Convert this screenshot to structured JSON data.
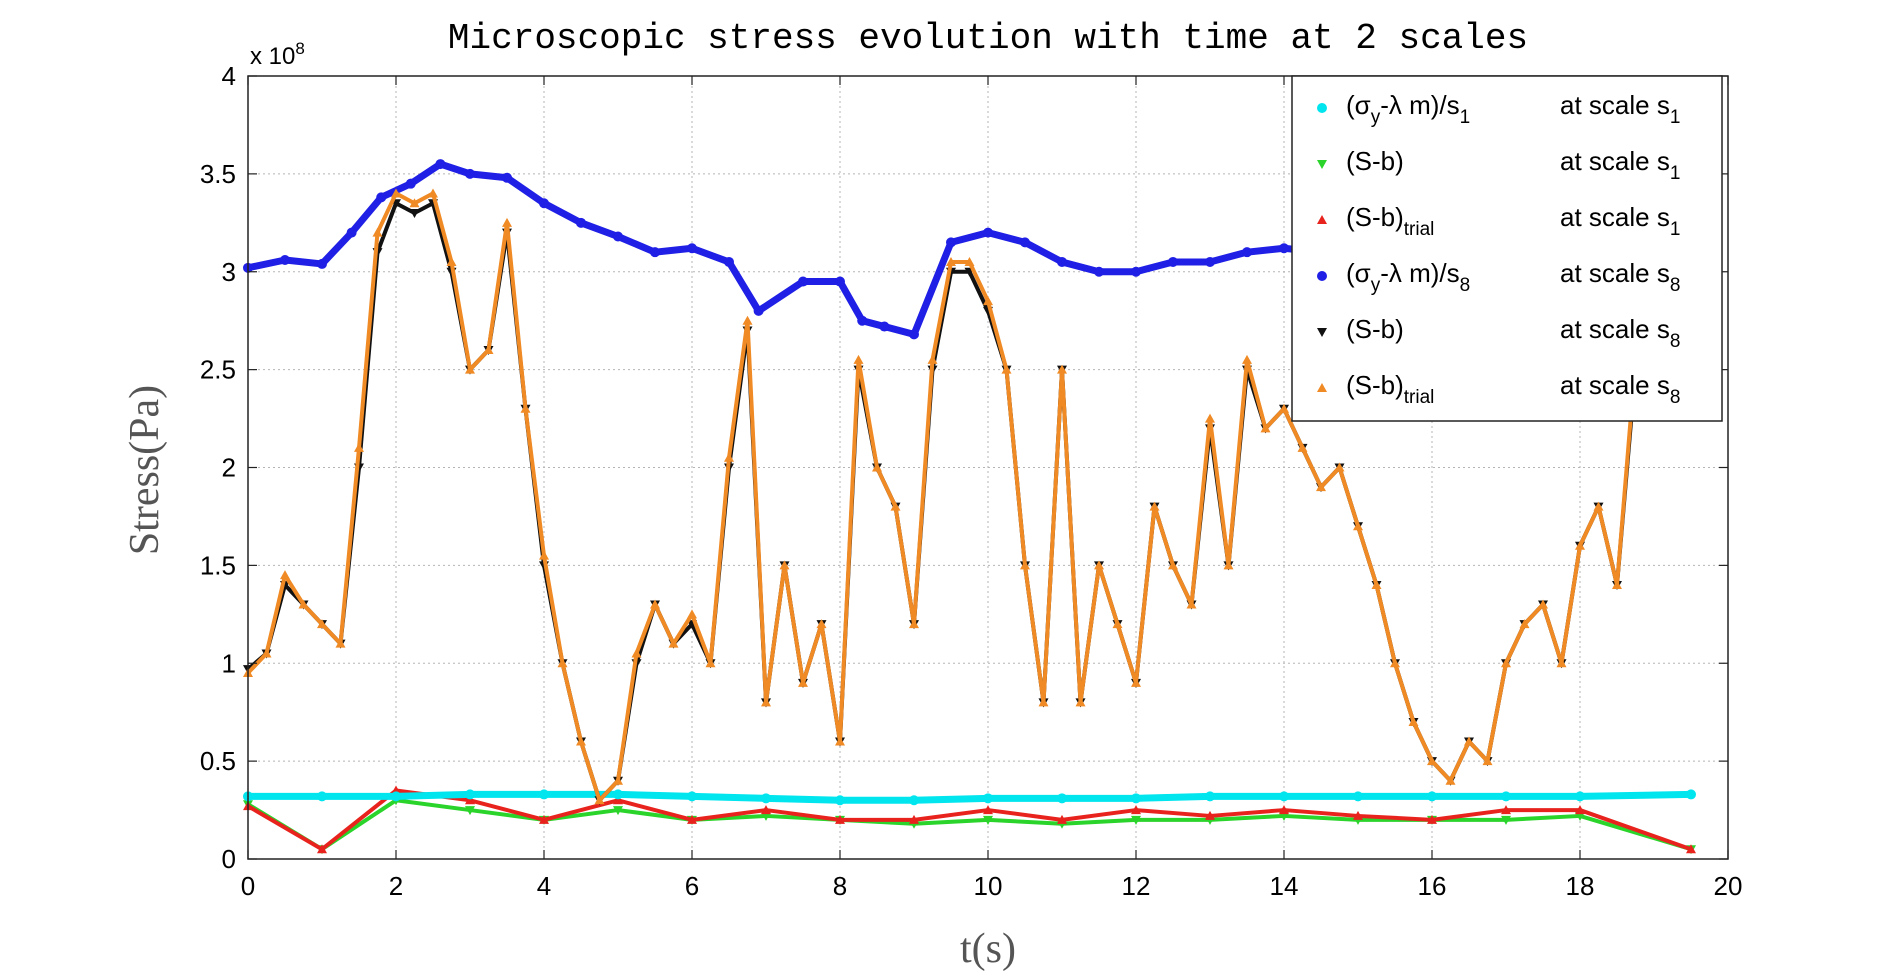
{
  "chart_data": {
    "type": "scatter",
    "title": "Microscopic stress evolution with time at 2 scales",
    "xlabel": "t(s)",
    "ylabel": "Stress(Pa)",
    "y_exponent_label": "x 10",
    "y_exponent_power": "8",
    "xlim": [
      0,
      20
    ],
    "ylim": [
      0,
      4
    ],
    "y_scale_factor": 100000000,
    "xticks": [
      "0",
      "2",
      "4",
      "6",
      "8",
      "10",
      "12",
      "14",
      "16",
      "18",
      "20"
    ],
    "yticks": [
      "0",
      "0.5",
      "1",
      "1.5",
      "2",
      "2.5",
      "3",
      "3.5",
      "4"
    ],
    "grid": true,
    "legend_position": "top-right",
    "series": [
      {
        "key": "yield_s1",
        "legend_main": "(σ",
        "legend_sub1": "y",
        "legend_mid": "-λ m)/s",
        "legend_sub2": "1",
        "legend_scale": "at scale s",
        "legend_scale_sub": "1",
        "color": "#00e5ee",
        "marker": "circle",
        "x": [
          0,
          1,
          2,
          3,
          4,
          5,
          6,
          7,
          8,
          9,
          10,
          11,
          12,
          13,
          14,
          15,
          16,
          17,
          18,
          19.5
        ],
        "y": [
          0.32,
          0.32,
          0.32,
          0.33,
          0.33,
          0.33,
          0.32,
          0.31,
          0.3,
          0.3,
          0.31,
          0.31,
          0.31,
          0.32,
          0.32,
          0.32,
          0.32,
          0.32,
          0.32,
          0.33
        ]
      },
      {
        "key": "sb_s1",
        "legend_main": "(S-b)",
        "legend_sub1": "",
        "legend_mid": "",
        "legend_sub2": "",
        "legend_scale": "at scale s",
        "legend_scale_sub": "1",
        "color": "#2ad42a",
        "marker": "triangle-down",
        "x": [
          0,
          1,
          2,
          3,
          4,
          5,
          6,
          7,
          8,
          9,
          10,
          11,
          12,
          13,
          14,
          15,
          16,
          17,
          18,
          19.5
        ],
        "y": [
          0.28,
          0.05,
          0.3,
          0.25,
          0.2,
          0.25,
          0.2,
          0.22,
          0.2,
          0.18,
          0.2,
          0.18,
          0.2,
          0.2,
          0.22,
          0.2,
          0.2,
          0.2,
          0.22,
          0.05
        ]
      },
      {
        "key": "sbtrial_s1",
        "legend_main": "(S-b)",
        "legend_sub1": "trial",
        "legend_mid": "",
        "legend_sub2": "",
        "legend_scale": "at scale s",
        "legend_scale_sub": "1",
        "color": "#e8231e",
        "marker": "triangle-up",
        "x": [
          0,
          1,
          2,
          3,
          4,
          5,
          6,
          7,
          8,
          9,
          10,
          11,
          12,
          13,
          14,
          15,
          16,
          17,
          18,
          19.5
        ],
        "y": [
          0.27,
          0.05,
          0.35,
          0.3,
          0.2,
          0.3,
          0.2,
          0.25,
          0.2,
          0.2,
          0.25,
          0.2,
          0.25,
          0.22,
          0.25,
          0.22,
          0.2,
          0.25,
          0.25,
          0.05
        ]
      },
      {
        "key": "yield_s8",
        "legend_main": "(σ",
        "legend_sub1": "y",
        "legend_mid": "-λ m)/s",
        "legend_sub2": "8",
        "legend_scale": "at scale s",
        "legend_scale_sub": "8",
        "color": "#1f1fe6",
        "marker": "circle",
        "x": [
          0,
          0.5,
          1,
          1.4,
          1.8,
          2.2,
          2.6,
          3.0,
          3.5,
          4.0,
          4.5,
          5.0,
          5.5,
          6.0,
          6.5,
          6.9,
          7.5,
          8.0,
          8.3,
          8.6,
          9.0,
          9.5,
          10.0,
          10.5,
          11.0,
          11.5,
          12.0,
          12.5,
          13.0,
          13.5,
          14.0,
          14.5
        ],
        "y": [
          3.02,
          3.06,
          3.04,
          3.2,
          3.38,
          3.45,
          3.55,
          3.5,
          3.48,
          3.35,
          3.25,
          3.18,
          3.1,
          3.12,
          3.05,
          2.8,
          2.95,
          2.95,
          2.75,
          2.72,
          2.68,
          3.15,
          3.2,
          3.15,
          3.05,
          3.0,
          3.0,
          3.05,
          3.05,
          3.1,
          3.12,
          3.1
        ]
      },
      {
        "key": "sb_s8",
        "legend_main": "(S-b)",
        "legend_sub1": "",
        "legend_mid": "",
        "legend_sub2": "",
        "legend_scale": "at scale s",
        "legend_scale_sub": "8",
        "color": "#111111",
        "marker": "triangle-down",
        "x": [
          0,
          0.25,
          0.5,
          0.75,
          1.0,
          1.25,
          1.5,
          1.75,
          2.0,
          2.25,
          2.5,
          2.75,
          3.0,
          3.25,
          3.5,
          3.75,
          4.0,
          4.25,
          4.5,
          4.75,
          5.0,
          5.25,
          5.5,
          5.75,
          6.0,
          6.25,
          6.5,
          6.75,
          7.0,
          7.25,
          7.5,
          7.75,
          8.0,
          8.25,
          8.5,
          8.75,
          9.0,
          9.25,
          9.5,
          9.75,
          10.0,
          10.25,
          10.5,
          10.75,
          11.0,
          11.25,
          11.5,
          11.75,
          12.0,
          12.25,
          12.5,
          12.75,
          13.0,
          13.25,
          13.5,
          13.75,
          14.0,
          14.25,
          14.5,
          14.75,
          15.0,
          15.25,
          15.5,
          15.75,
          16.0,
          16.25,
          16.5,
          16.75,
          17.0,
          17.25,
          17.5,
          17.75,
          18.0,
          18.25,
          18.5,
          18.75
        ],
        "y": [
          0.97,
          1.05,
          1.4,
          1.3,
          1.2,
          1.1,
          2.0,
          3.1,
          3.35,
          3.3,
          3.35,
          3.0,
          2.5,
          2.6,
          3.2,
          2.3,
          1.5,
          1.0,
          0.6,
          0.3,
          0.4,
          1.0,
          1.3,
          1.1,
          1.2,
          1.0,
          2.0,
          2.7,
          0.8,
          1.5,
          0.9,
          1.2,
          0.6,
          2.5,
          2.0,
          1.8,
          1.2,
          2.5,
          3.0,
          3.0,
          2.8,
          2.5,
          1.5,
          0.8,
          2.5,
          0.8,
          1.5,
          1.2,
          0.9,
          1.8,
          1.5,
          1.3,
          2.2,
          1.5,
          2.5,
          2.2,
          2.3,
          2.1,
          1.9,
          2.0,
          1.7,
          1.4,
          1.0,
          0.7,
          0.5,
          0.4,
          0.6,
          0.5,
          1.0,
          1.2,
          1.3,
          1.0,
          1.6,
          1.8,
          1.4,
          2.5
        ]
      },
      {
        "key": "sbtrial_s8",
        "legend_main": "(S-b)",
        "legend_sub1": "trial",
        "legend_mid": "",
        "legend_sub2": "",
        "legend_scale": "at scale s",
        "legend_scale_sub": "8",
        "color": "#f08a24",
        "marker": "triangle-up",
        "x": [
          0,
          0.25,
          0.5,
          0.75,
          1.0,
          1.25,
          1.5,
          1.75,
          2.0,
          2.25,
          2.5,
          2.75,
          3.0,
          3.25,
          3.5,
          3.75,
          4.0,
          4.25,
          4.5,
          4.75,
          5.0,
          5.25,
          5.5,
          5.75,
          6.0,
          6.25,
          6.5,
          6.75,
          7.0,
          7.25,
          7.5,
          7.75,
          8.0,
          8.25,
          8.5,
          8.75,
          9.0,
          9.25,
          9.5,
          9.75,
          10.0,
          10.25,
          10.5,
          10.75,
          11.0,
          11.25,
          11.5,
          11.75,
          12.0,
          12.25,
          12.5,
          12.75,
          13.0,
          13.25,
          13.5,
          13.75,
          14.0,
          14.25,
          14.5,
          14.75,
          15.0,
          15.25,
          15.5,
          15.75,
          16.0,
          16.25,
          16.5,
          16.75,
          17.0,
          17.25,
          17.5,
          17.75,
          18.0,
          18.25,
          18.5,
          18.75
        ],
        "y": [
          0.95,
          1.05,
          1.45,
          1.3,
          1.2,
          1.1,
          2.1,
          3.2,
          3.4,
          3.35,
          3.4,
          3.05,
          2.5,
          2.6,
          3.25,
          2.3,
          1.55,
          1.0,
          0.6,
          0.3,
          0.4,
          1.05,
          1.3,
          1.1,
          1.25,
          1.0,
          2.05,
          2.75,
          0.8,
          1.5,
          0.9,
          1.2,
          0.6,
          2.55,
          2.0,
          1.8,
          1.2,
          2.55,
          3.05,
          3.05,
          2.85,
          2.5,
          1.5,
          0.8,
          2.5,
          0.8,
          1.5,
          1.2,
          0.9,
          1.8,
          1.5,
          1.3,
          2.25,
          1.5,
          2.55,
          2.2,
          2.3,
          2.1,
          1.9,
          2.0,
          1.7,
          1.4,
          1.0,
          0.7,
          0.5,
          0.4,
          0.6,
          0.5,
          1.0,
          1.2,
          1.3,
          1.0,
          1.6,
          1.8,
          1.4,
          2.55
        ]
      }
    ]
  }
}
